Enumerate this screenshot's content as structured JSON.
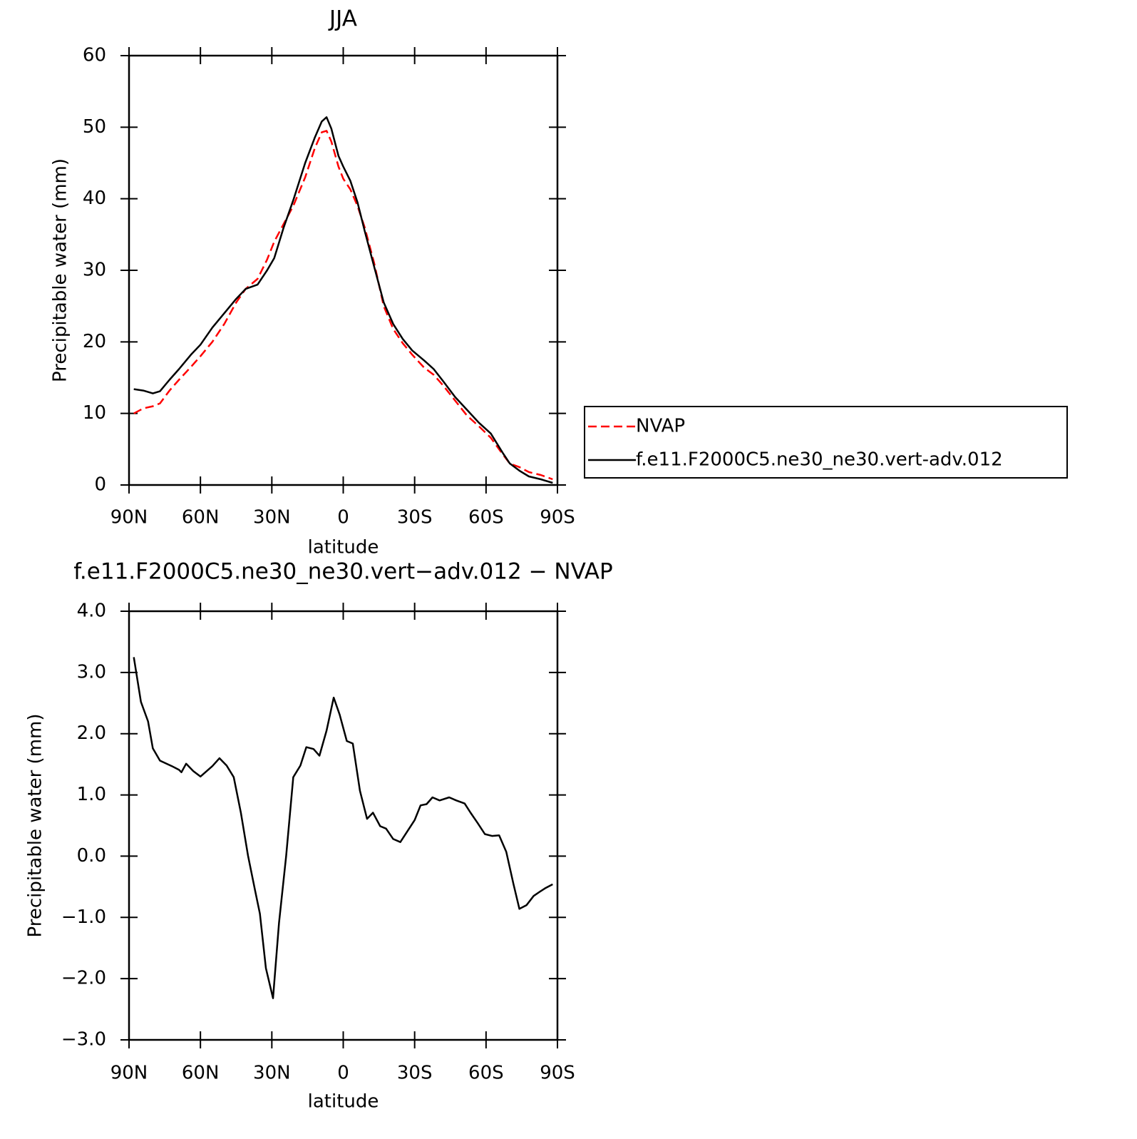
{
  "chart_data": [
    {
      "type": "line",
      "title": "JJA",
      "xlabel": "latitude",
      "ylabel": "Precipitable water (mm)",
      "x": [
        88,
        84,
        80,
        77,
        73,
        69,
        64,
        60,
        55,
        50,
        45,
        41,
        36,
        32,
        29,
        25,
        21,
        16,
        12,
        9,
        7,
        5,
        2,
        0,
        -3,
        -6,
        -9,
        -13,
        -17,
        -21,
        -25,
        -29,
        -34,
        -38,
        -42,
        -47,
        -52,
        -57,
        -62,
        -67,
        -70,
        -74,
        -78,
        -83,
        -88
      ],
      "series": [
        {
          "name": "NVAP",
          "color": "#ff0000",
          "dashed": true,
          "values": [
            10.0,
            10.7,
            11.0,
            11.4,
            13.2,
            14.7,
            16.5,
            18.0,
            20.0,
            22.5,
            25.5,
            27.4,
            28.8,
            31.5,
            34.0,
            36.5,
            39.0,
            43.0,
            47.0,
            49.3,
            49.5,
            48.0,
            44.5,
            42.8,
            41.3,
            39.0,
            36.0,
            31.0,
            25.0,
            21.8,
            19.8,
            18.2,
            16.4,
            15.4,
            13.9,
            11.8,
            9.7,
            8.2,
            6.6,
            4.3,
            3.0,
            2.5,
            1.8,
            1.4,
            0.8
          ]
        },
        {
          "name": "f.e11.F2000C5.ne30_ne30.vert-adv.012",
          "color": "#000000",
          "dashed": false,
          "values": [
            13.4,
            13.2,
            12.8,
            13.1,
            14.7,
            16.2,
            18.2,
            19.6,
            22.0,
            24.0,
            26.0,
            27.4,
            28.0,
            30.0,
            31.7,
            36.0,
            39.8,
            45.0,
            48.5,
            50.8,
            51.4,
            49.8,
            46.0,
            44.5,
            42.5,
            39.5,
            35.5,
            30.5,
            25.5,
            22.5,
            20.4,
            18.8,
            17.4,
            16.2,
            14.5,
            12.3,
            10.5,
            8.7,
            7.2,
            4.5,
            3.0,
            2.0,
            1.2,
            0.8,
            0.3
          ]
        }
      ],
      "legend": "right",
      "xlim": [
        90,
        -90
      ],
      "xticks": [
        {
          "value": 90,
          "label": "90N"
        },
        {
          "value": 60,
          "label": "60N"
        },
        {
          "value": 30,
          "label": "30N"
        },
        0,
        {
          "value": -30,
          "label": "30S"
        },
        {
          "value": -60,
          "label": "60S"
        },
        {
          "value": -90,
          "label": "90S"
        }
      ],
      "ylim": [
        0,
        60
      ],
      "yticks": [
        0,
        10,
        20,
        30,
        40,
        50,
        60
      ]
    },
    {
      "type": "line",
      "title": "f.e11.F2000C5.ne30_ne30.vert−adv.012 − NVAP",
      "xlabel": "latitude",
      "ylabel": "Precipitable water (mm)",
      "x": [
        88,
        85,
        82,
        80,
        77,
        72,
        69,
        68,
        66,
        63,
        60,
        55,
        52,
        49,
        46,
        43,
        40,
        37,
        35,
        32.5,
        29.5,
        27,
        24,
        21,
        18,
        15.5,
        12.5,
        10,
        7,
        4,
        1.5,
        -1.5,
        -4,
        -7,
        -10,
        -12.5,
        -15.5,
        -18,
        -21,
        -24,
        -27,
        -30,
        -32.5,
        -35,
        -37.5,
        -40.5,
        -44.5,
        -47.5,
        -51,
        -53.5,
        -56.5,
        -59.5,
        -62.5,
        -65.5,
        -68.5,
        -71.5,
        -74,
        -77,
        -80,
        -83,
        -85,
        -88
      ],
      "series": [
        {
          "color": "#000000",
          "values": [
            3.25,
            2.52,
            2.2,
            1.76,
            1.56,
            1.47,
            1.41,
            1.37,
            1.51,
            1.39,
            1.3,
            1.47,
            1.6,
            1.48,
            1.29,
            0.71,
            0.01,
            -0.57,
            -0.94,
            -1.83,
            -2.32,
            -1.09,
            0.0,
            1.29,
            1.48,
            1.78,
            1.75,
            1.64,
            2.05,
            2.59,
            2.31,
            1.88,
            1.84,
            1.07,
            0.61,
            0.71,
            0.49,
            0.45,
            0.28,
            0.23,
            0.41,
            0.59,
            0.83,
            0.85,
            0.96,
            0.91,
            0.96,
            0.91,
            0.86,
            0.71,
            0.54,
            0.36,
            0.33,
            0.34,
            0.07,
            -0.45,
            -0.86,
            -0.8,
            -0.65,
            -0.57,
            -0.52,
            -0.46
          ]
        }
      ],
      "xlim": [
        90,
        -90
      ],
      "xticks": [
        {
          "value": 90,
          "label": "90N"
        },
        {
          "value": 60,
          "label": "60N"
        },
        {
          "value": 30,
          "label": "30N"
        },
        0,
        {
          "value": -30,
          "label": "30S"
        },
        {
          "value": -60,
          "label": "60S"
        },
        {
          "value": -90,
          "label": "90S"
        }
      ],
      "ylim": [
        -3,
        4
      ],
      "yticks": [
        {
          "value": -3,
          "label": "−3.0"
        },
        {
          "value": -2,
          "label": "−2.0"
        },
        {
          "value": -1,
          "label": "−1.0"
        },
        {
          "value": 0,
          "label": "0.0"
        },
        {
          "value": 1,
          "label": "1.0"
        },
        {
          "value": 2,
          "label": "2.0"
        },
        {
          "value": 3,
          "label": "3.0"
        },
        {
          "value": 4,
          "label": "4.0"
        }
      ]
    }
  ]
}
